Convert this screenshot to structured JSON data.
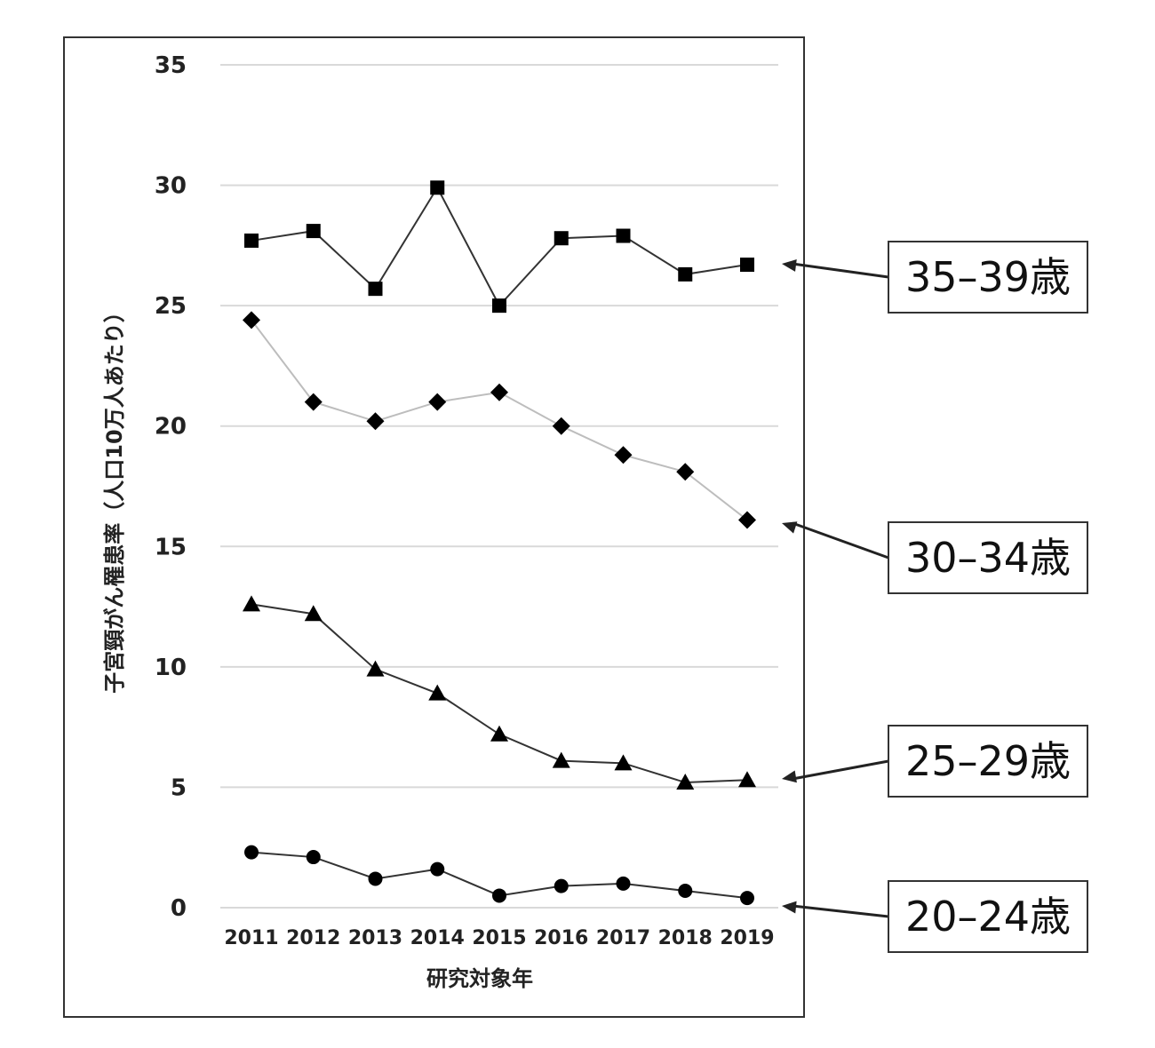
{
  "chart_data": {
    "type": "line",
    "title": "",
    "xlabel": "研究対象年",
    "ylabel": "子宮頸がん罹患率（人口10万人あたり）",
    "x": [
      "2011",
      "2012",
      "2013",
      "2014",
      "2015",
      "2016",
      "2017",
      "2018",
      "2019"
    ],
    "ylim": [
      0,
      35
    ],
    "yticks": [
      0,
      5,
      10,
      15,
      20,
      25,
      30,
      35
    ],
    "grid": "horizontal",
    "legend": "right-side callout labels with arrows",
    "series": [
      {
        "name": "35–39歳",
        "marker": "square",
        "line_color": "#333333",
        "values": [
          27.7,
          28.1,
          25.7,
          29.9,
          25.0,
          27.8,
          27.9,
          26.3,
          26.7
        ]
      },
      {
        "name": "30–34歳",
        "marker": "diamond",
        "line_color": "#bdbdbd",
        "values": [
          24.4,
          21.0,
          20.2,
          21.0,
          21.4,
          20.0,
          18.8,
          18.1,
          16.1
        ]
      },
      {
        "name": "25–29歳",
        "marker": "triangle",
        "line_color": "#333333",
        "values": [
          12.6,
          12.2,
          9.9,
          8.9,
          7.2,
          6.1,
          6.0,
          5.2,
          5.3
        ]
      },
      {
        "name": "20–24歳",
        "marker": "circle",
        "line_color": "#333333",
        "values": [
          2.3,
          2.1,
          1.2,
          1.6,
          0.5,
          0.9,
          1.0,
          0.7,
          0.4
        ]
      }
    ]
  }
}
